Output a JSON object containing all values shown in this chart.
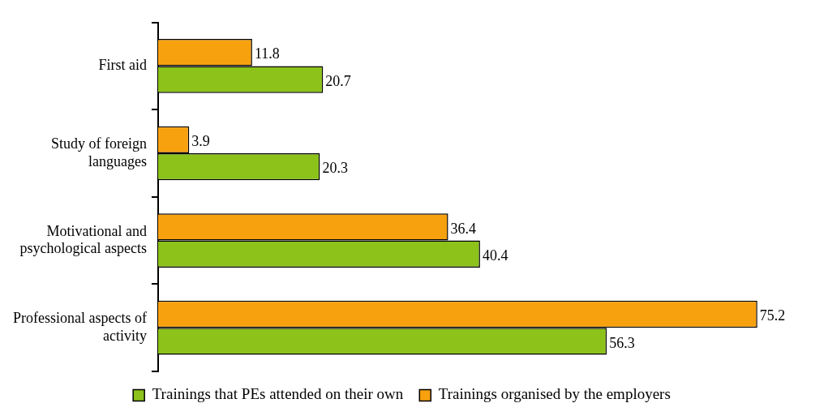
{
  "chart_data": {
    "type": "bar",
    "orientation": "horizontal",
    "categories": [
      "First aid",
      "Study of foreign\nlanguages",
      "Motivational and\npsychological aspects",
      "Professional aspects of\nactivity"
    ],
    "series": [
      {
        "name": "Trainings that PEs attended on their own",
        "color": "#8cc21a",
        "values": [
          20.7,
          20.3,
          40.4,
          56.3
        ]
      },
      {
        "name": "Trainings organised by the employers",
        "color": "#f7a10f",
        "values": [
          11.8,
          3.9,
          36.4,
          75.2
        ]
      }
    ],
    "data_labels": true,
    "legend": "bottom",
    "grid": false,
    "tick_labels": "y"
  }
}
